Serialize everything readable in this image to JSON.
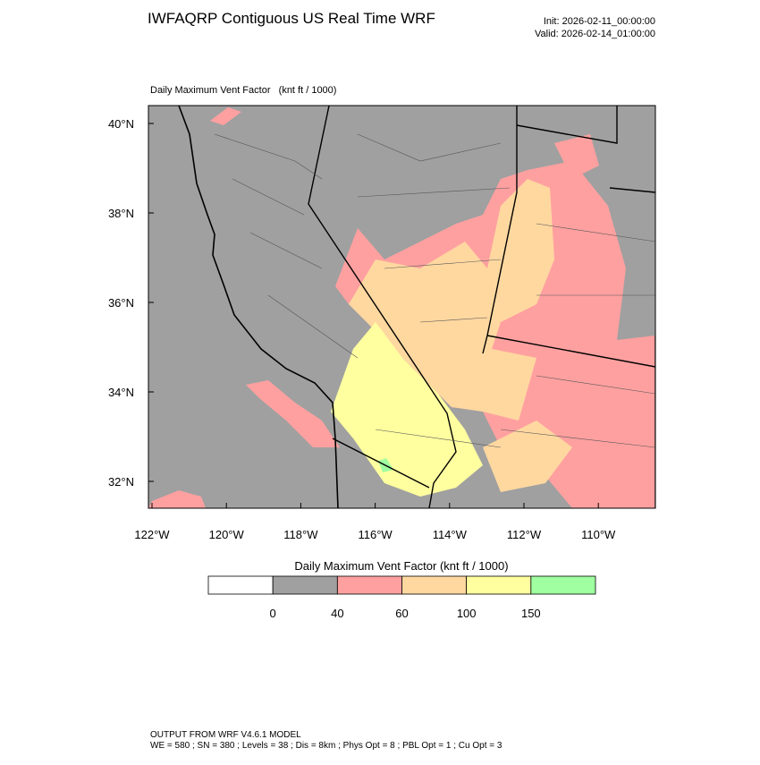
{
  "header": {
    "title": "IWFAQRP Contiguous US Real Time WRF",
    "init": "Init: 2026-02-11_00:00:00",
    "valid": "Valid: 2026-02-14_01:00:00"
  },
  "map": {
    "subtitle": "Daily Maximum Vent Factor   (knt ft / 1000)",
    "lat_labels": [
      "40°N",
      "38°N",
      "36°N",
      "34°N",
      "32°N"
    ],
    "lon_labels": [
      "122°W",
      "120°W",
      "118°W",
      "116°W",
      "114°W",
      "112°W",
      "110°W"
    ]
  },
  "colorbar": {
    "title": "Daily Maximum Vent Factor  (knt ft / 1000)",
    "colors": [
      "#ffffff",
      "#a0a0a0",
      "#ffa0a0",
      "#ffd8a0",
      "#ffffa0",
      "#a0ffa0"
    ],
    "labels": [
      "0",
      "40",
      "60",
      "100",
      "150"
    ]
  },
  "footer": {
    "line1": "OUTPUT FROM WRF V4.6.1 MODEL",
    "line2": "WE = 580 ; SN = 380 ; Levels = 38 ; Dis = 8km ; Phys Opt = 8 ; PBL Opt = 1 ; Cu Opt = 3"
  }
}
